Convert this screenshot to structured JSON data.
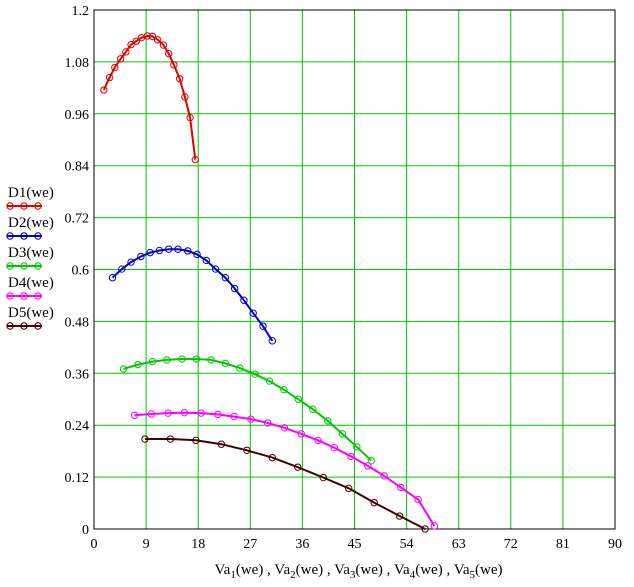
{
  "chart_data": {
    "type": "line",
    "xlim": [
      0,
      90
    ],
    "ylim": [
      0,
      1.2
    ],
    "x_ticks": [
      "0",
      "9",
      "18",
      "27",
      "36",
      "45",
      "54",
      "63",
      "72",
      "81",
      "90"
    ],
    "y_ticks": [
      "0",
      "0.12",
      "0.24",
      "0.36",
      "0.48",
      "0.6",
      "0.72",
      "0.84",
      "0.96",
      "1.08",
      "1.2"
    ],
    "grid": true,
    "grid_color": "#00c800",
    "xlabel": {
      "parts": [
        {
          "base": "Va",
          "sub": "1",
          "rest": "(we) , "
        },
        {
          "base": "Va",
          "sub": "2",
          "rest": "(we) , "
        },
        {
          "base": "Va",
          "sub": "3",
          "rest": "(we) , "
        },
        {
          "base": "Va",
          "sub": "4",
          "rest": "(we) , "
        },
        {
          "base": "Va",
          "sub": "5",
          "rest": "(we)"
        }
      ]
    },
    "legend_position": "left",
    "series": [
      {
        "name": "D1(we)",
        "color": "#e00000",
        "x": [
          1.7,
          2.7,
          3.6,
          4.6,
          5.5,
          6.4,
          7.3,
          8.2,
          9.2,
          10.1,
          11.0,
          12.0,
          12.9,
          13.8,
          14.8,
          15.7,
          16.6,
          17.5
        ],
        "y": [
          1.015,
          1.044,
          1.067,
          1.087,
          1.103,
          1.12,
          1.128,
          1.136,
          1.14,
          1.139,
          1.131,
          1.119,
          1.099,
          1.073,
          1.041,
          0.999,
          0.951,
          0.854
        ]
      },
      {
        "name": "D2(we)",
        "color": "#0000c8",
        "x": [
          3.2,
          4.8,
          6.4,
          8.1,
          9.7,
          11.3,
          12.9,
          14.5,
          16.2,
          17.8,
          19.4,
          21.0,
          22.7,
          24.3,
          25.9,
          27.5,
          29.2,
          30.8
        ],
        "y": [
          0.581,
          0.601,
          0.617,
          0.63,
          0.639,
          0.644,
          0.647,
          0.647,
          0.643,
          0.635,
          0.621,
          0.601,
          0.581,
          0.556,
          0.529,
          0.499,
          0.469,
          0.435
        ]
      },
      {
        "name": "D3(we)",
        "color": "#00c800",
        "x": [
          5.1,
          7.6,
          10.1,
          12.6,
          15.2,
          17.7,
          20.2,
          22.7,
          25.2,
          27.8,
          30.3,
          32.8,
          35.3,
          37.8,
          40.4,
          42.9,
          45.4,
          47.9
        ],
        "y": [
          0.37,
          0.38,
          0.387,
          0.391,
          0.393,
          0.393,
          0.391,
          0.383,
          0.372,
          0.358,
          0.342,
          0.322,
          0.3,
          0.277,
          0.25,
          0.22,
          0.19,
          0.158
        ]
      },
      {
        "name": "D4(we)",
        "color": "#ff00ff",
        "x": [
          7.0,
          9.9,
          12.8,
          15.6,
          18.5,
          21.4,
          24.2,
          27.1,
          30.0,
          32.9,
          35.8,
          38.7,
          41.5,
          44.4,
          47.3,
          50.1,
          53.0,
          56.0,
          58.8
        ],
        "y": [
          0.263,
          0.266,
          0.268,
          0.269,
          0.268,
          0.265,
          0.26,
          0.254,
          0.245,
          0.234,
          0.22,
          0.205,
          0.188,
          0.168,
          0.146,
          0.123,
          0.096,
          0.068,
          0.007
        ]
      },
      {
        "name": "D5(we)",
        "color": "#440000",
        "x": [
          8.8,
          13.2,
          17.6,
          22.0,
          26.4,
          30.8,
          35.2,
          39.6,
          44.0,
          48.4,
          52.8,
          57.2
        ],
        "y": [
          0.208,
          0.208,
          0.205,
          0.196,
          0.182,
          0.165,
          0.143,
          0.119,
          0.094,
          0.061,
          0.03,
          0.0
        ]
      }
    ]
  }
}
